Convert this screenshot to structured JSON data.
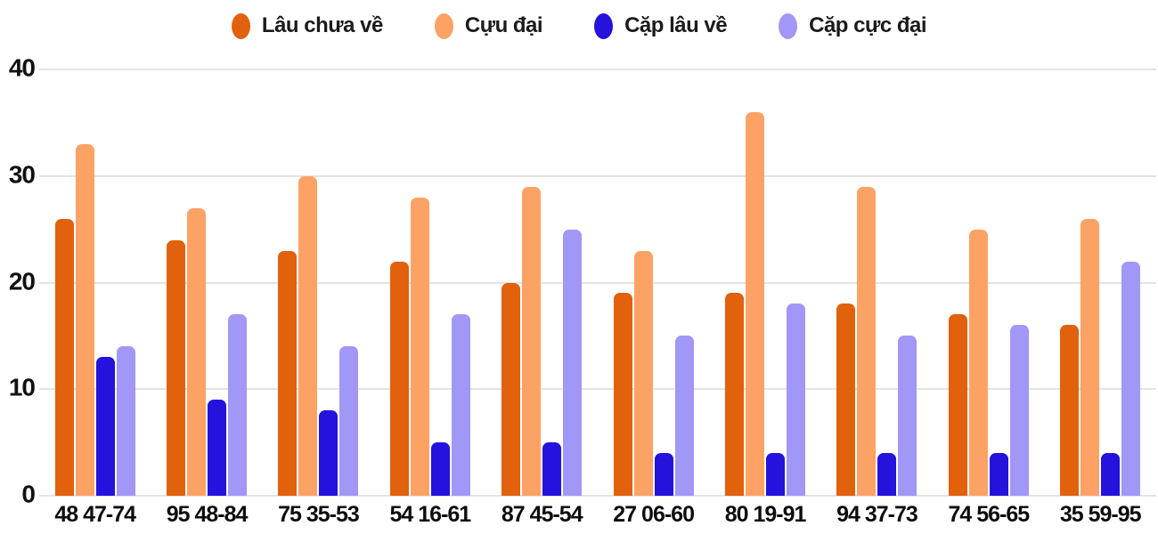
{
  "chart_data": {
    "type": "bar",
    "title": "",
    "categories": [
      "48 47-74",
      "95 48-84",
      "75 35-53",
      "54 16-61",
      "87 45-54",
      "27 06-60",
      "80 19-91",
      "94 37-73",
      "74 56-65",
      "35 59-95"
    ],
    "series": [
      {
        "name": "Lâu chưa về",
        "color": "#e2610d",
        "values": [
          26,
          24,
          23,
          22,
          20,
          19,
          19,
          18,
          17,
          16
        ]
      },
      {
        "name": "Cựu đại",
        "color": "#fda265",
        "values": [
          33,
          27,
          30,
          28,
          29,
          23,
          36,
          29,
          25,
          26
        ]
      },
      {
        "name": "Cặp lâu về",
        "color": "#2512dc",
        "values": [
          13,
          9,
          8,
          5,
          5,
          4,
          4,
          4,
          4,
          4
        ]
      },
      {
        "name": "Cặp cực đại",
        "color": "#a197f6",
        "values": [
          14,
          17,
          14,
          17,
          25,
          15,
          18,
          15,
          16,
          22
        ]
      }
    ],
    "y_ticks": [
      40,
      30,
      20,
      10,
      0
    ],
    "ylim": [
      0,
      40
    ],
    "grid": true,
    "legend_position": "top"
  },
  "colors": {
    "grid": "#e4e2e2",
    "text": "#111111",
    "background": "#ffffff"
  }
}
